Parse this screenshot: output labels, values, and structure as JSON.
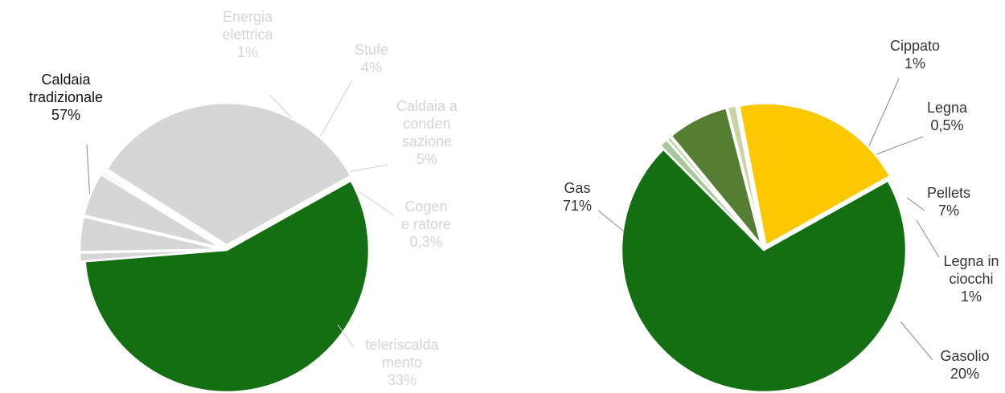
{
  "chart_data": [
    {
      "type": "pie",
      "title": "",
      "slices": [
        {
          "label": [
            "Caldaia",
            "tradizionale"
          ],
          "value_label": "57%",
          "value": 57,
          "color": "#136f12",
          "text_color": "#111111"
        },
        {
          "label": [
            "Energia",
            "elettrica"
          ],
          "value_label": "1%",
          "value": 1,
          "color": "#d6d6d6",
          "text_color": "#d4d4d4"
        },
        {
          "label": [
            "Stufe"
          ],
          "value_label": "4%",
          "value": 4,
          "color": "#d6d6d6",
          "text_color": "#d4d4d4"
        },
        {
          "label": [
            "Caldaia a",
            "conden",
            "sazione"
          ],
          "value_label": "5%",
          "value": 5,
          "color": "#d6d6d6",
          "text_color": "#d4d4d4"
        },
        {
          "label": [
            "Cogen",
            "e ratore"
          ],
          "value_label": "0,3%",
          "value": 0.3,
          "color": "#d6d6d6",
          "text_color": "#d4d4d4"
        },
        {
          "label": [
            "teleriscalda",
            "mento"
          ],
          "value_label": "33%",
          "value": 33,
          "color": "#d6d6d6",
          "text_color": "#d4d4d4"
        }
      ]
    },
    {
      "type": "pie",
      "title": "",
      "slices": [
        {
          "label": [
            "Gas"
          ],
          "value_label": "71%",
          "value": 71,
          "color": "#136f12",
          "text_color": "#333333"
        },
        {
          "label": [
            "Cippato"
          ],
          "value_label": "1%",
          "value": 1,
          "color": "#a9c79a",
          "text_color": "#333333"
        },
        {
          "label": [
            "Legna"
          ],
          "value_label": "0,5%",
          "value": 0.5,
          "color": "#bcd7a8",
          "text_color": "#333333"
        },
        {
          "label": [
            "Pellets"
          ],
          "value_label": "7%",
          "value": 7,
          "color": "#567e33",
          "text_color": "#333333"
        },
        {
          "label": [
            "Legna in",
            "ciocchi"
          ],
          "value_label": "1%",
          "value": 1,
          "color": "#c8d3a6",
          "text_color": "#333333"
        },
        {
          "label": [
            "Gasolio"
          ],
          "value_label": "20%",
          "value": 20,
          "color": "#fcc901",
          "text_color": "#333333"
        }
      ]
    }
  ]
}
